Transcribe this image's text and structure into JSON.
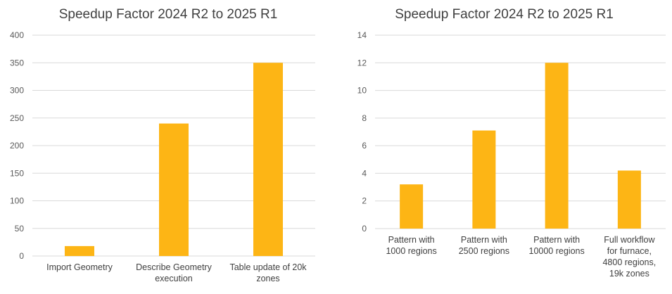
{
  "chart_data": [
    {
      "type": "bar",
      "title": "Speedup Factor 2024 R2 to 2025 R1",
      "categories": [
        "Import Geometry",
        "Describe Geometry execution",
        "Table update of 20k zones"
      ],
      "category_lines": [
        [
          "Import Geometry"
        ],
        [
          "Describe Geometry",
          "execution"
        ],
        [
          "Table update of 20k",
          "zones"
        ]
      ],
      "values": [
        18,
        240,
        350
      ],
      "ylim": [
        0,
        400
      ],
      "yticks": [
        0,
        50,
        100,
        150,
        200,
        250,
        300,
        350,
        400
      ],
      "xlabel": "",
      "ylabel": "",
      "grid": true,
      "bar_color": "#FDB515",
      "grid_color": "#D9D9D9"
    },
    {
      "type": "bar",
      "title": "Speedup Factor 2024 R2 to 2025 R1",
      "categories": [
        "Pattern with 1000 regions",
        "Pattern with 2500 regions",
        "Pattern with 10000 regions",
        "Full workflow for furnace, 4800 regions, 19k zones"
      ],
      "category_lines": [
        [
          "Pattern with",
          "1000 regions"
        ],
        [
          "Pattern with",
          "2500 regions"
        ],
        [
          "Pattern with",
          "10000 regions"
        ],
        [
          "Full workflow",
          "for furnace,",
          "4800 regions,",
          "19k zones"
        ]
      ],
      "values": [
        3.2,
        7.1,
        12,
        4.2
      ],
      "ylim": [
        0,
        14
      ],
      "yticks": [
        0,
        2,
        4,
        6,
        8,
        10,
        12,
        14
      ],
      "xlabel": "",
      "ylabel": "",
      "grid": true,
      "bar_color": "#FDB515",
      "grid_color": "#D9D9D9"
    }
  ]
}
